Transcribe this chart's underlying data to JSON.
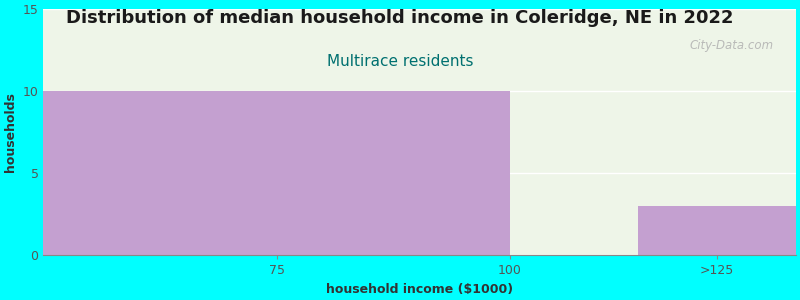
{
  "title": "Distribution of median household income in Coleridge, NE in 2022",
  "subtitle": "Multirace residents",
  "xlabel": "household income ($1000)",
  "ylabel": "households",
  "background_color": "#00FFFF",
  "panel_bg_color": "#eef5e8",
  "bar_color": "#c4a0d0",
  "categories": [
    "75",
    "100",
    ">125"
  ],
  "bin_edges": [
    0,
    100,
    112.5,
    125
  ],
  "values": [
    10,
    0,
    3
  ],
  "ylim": [
    0,
    15
  ],
  "yticks": [
    0,
    5,
    10,
    15
  ],
  "title_fontsize": 13,
  "subtitle_fontsize": 11,
  "subtitle_color": "#007070",
  "axis_label_fontsize": 9,
  "tick_fontsize": 9,
  "tick_color": "#555555",
  "watermark": "City-Data.com"
}
